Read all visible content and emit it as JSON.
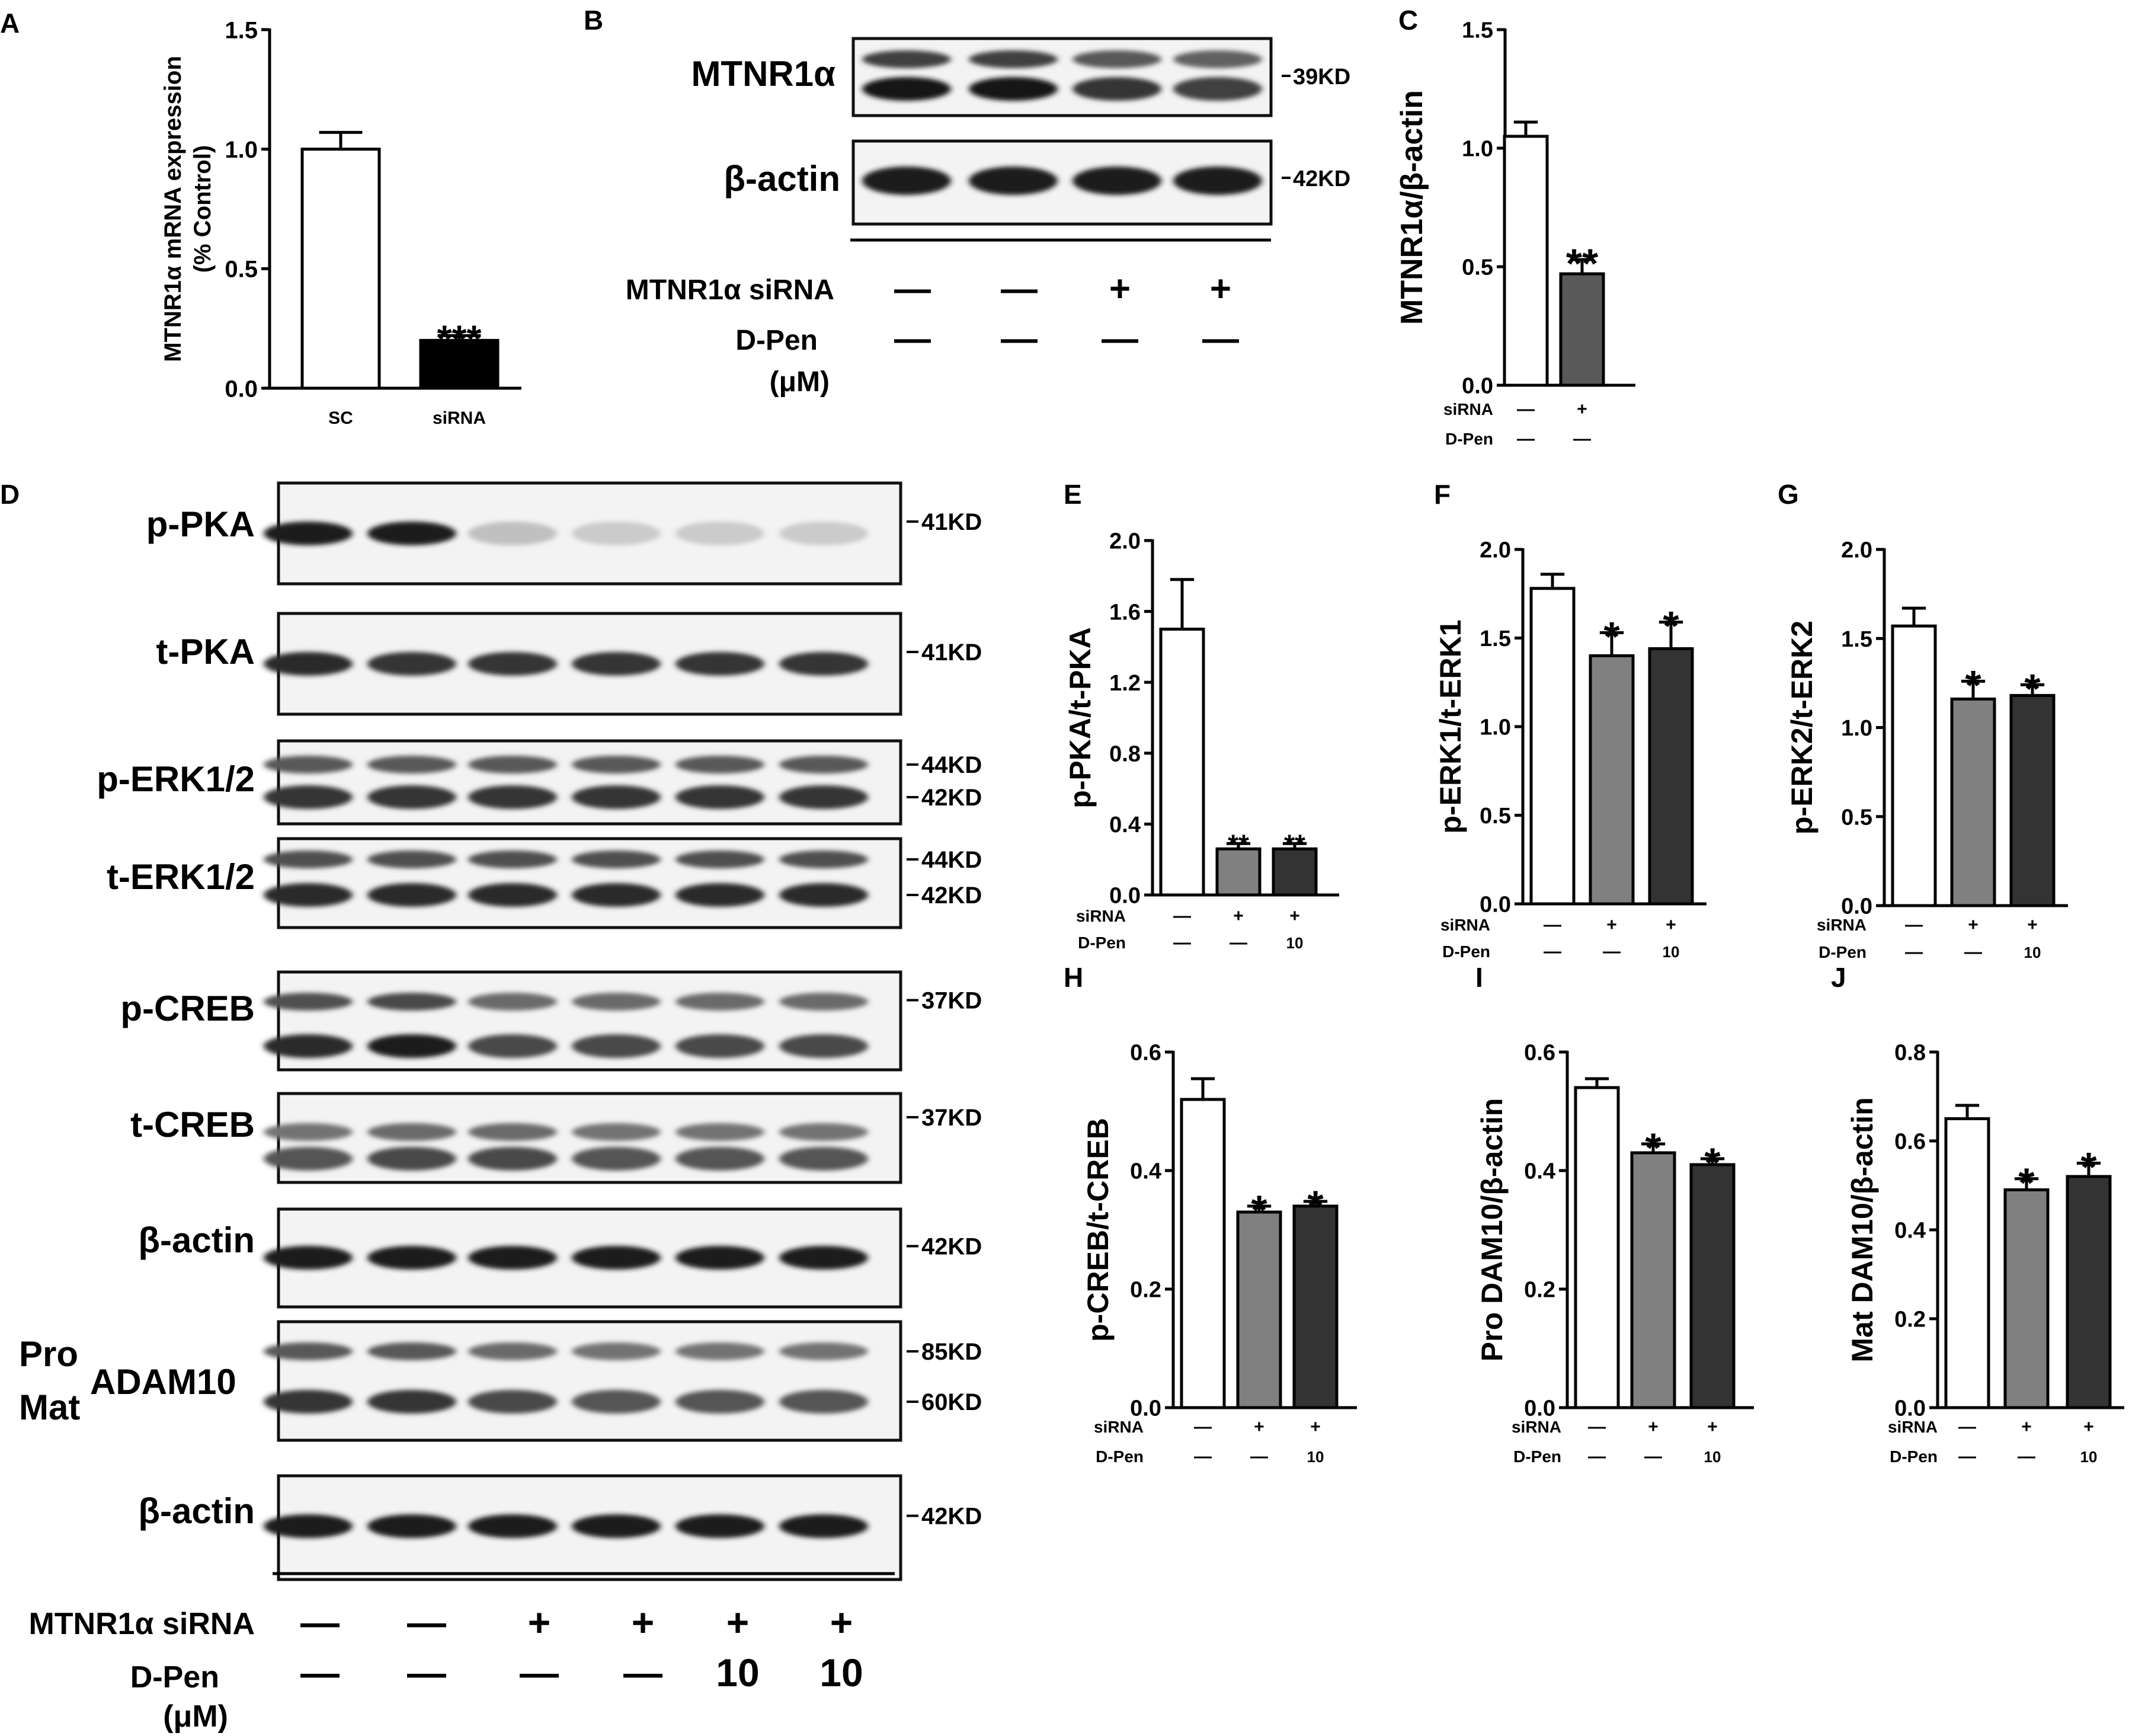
{
  "panels": {
    "A": {
      "letter": "A"
    },
    "B": {
      "letter": "B"
    },
    "C": {
      "letter": "C"
    },
    "D": {
      "letter": "D"
    },
    "E": {
      "letter": "E"
    },
    "F": {
      "letter": "F"
    },
    "G": {
      "letter": "G"
    },
    "H": {
      "letter": "H"
    },
    "I": {
      "letter": "I"
    },
    "J": {
      "letter": "J"
    }
  },
  "blotB": {
    "lanes": 4,
    "bands": [
      {
        "label": "MTNR1α",
        "marker": "39KD",
        "intensity": [
          1.0,
          1.0,
          0.85,
          0.8
        ],
        "double": true
      },
      {
        "label": "β-actin",
        "marker": "42KD",
        "intensity": [
          0.95,
          0.95,
          0.95,
          0.95
        ],
        "double": false
      }
    ],
    "treatments": [
      {
        "label": "MTNR1α siRNA",
        "values": [
          "—",
          "—",
          "+",
          "+"
        ]
      },
      {
        "label": "D-Pen",
        "unit": "(μM)",
        "values": [
          "—",
          "—",
          "—",
          "—"
        ]
      }
    ]
  },
  "blotD": {
    "lanes": 6,
    "bands": [
      {
        "label": "p-PKA",
        "markers": [
          "41KD"
        ],
        "intensity": [
          0.95,
          0.95,
          0.2,
          0.15,
          0.15,
          0.15
        ],
        "double": false
      },
      {
        "label": "t-PKA",
        "markers": [
          "41KD"
        ],
        "intensity": [
          0.9,
          0.85,
          0.85,
          0.85,
          0.85,
          0.85
        ],
        "double": false
      },
      {
        "label": "p-ERK1/2",
        "markers": [
          "44KD",
          "42KD"
        ],
        "intensity": [
          0.85,
          0.85,
          0.85,
          0.85,
          0.85,
          0.85
        ],
        "double": true
      },
      {
        "label": "t-ERK1/2",
        "markers": [
          "44KD",
          "42KD"
        ],
        "intensity": [
          0.9,
          0.9,
          0.9,
          0.9,
          0.9,
          0.9
        ],
        "double": true
      },
      {
        "label": "p-CREB",
        "markers": [
          "37KD"
        ],
        "intensity": [
          0.9,
          0.95,
          0.75,
          0.75,
          0.75,
          0.75
        ],
        "double": true
      },
      {
        "label": "t-CREB",
        "markers": [
          "37KD"
        ],
        "intensity": [
          0.7,
          0.75,
          0.75,
          0.7,
          0.7,
          0.7
        ],
        "double": true
      },
      {
        "label": "β-actin",
        "markers": [
          "42KD"
        ],
        "intensity": [
          0.95,
          0.95,
          0.95,
          0.95,
          0.95,
          0.95
        ],
        "double": false
      },
      {
        "label": "ADAM10",
        "prefix_top": "Pro",
        "prefix_bottom": "Mat",
        "markers": [
          "85KD",
          "60KD"
        ],
        "intensity": [
          0.85,
          0.85,
          0.75,
          0.7,
          0.7,
          0.7
        ],
        "double": true
      },
      {
        "label": "β-actin",
        "markers": [
          "42KD"
        ],
        "intensity": [
          0.95,
          0.95,
          0.95,
          0.95,
          0.95,
          0.95
        ],
        "double": false
      }
    ],
    "treatments": [
      {
        "label": "MTNR1α siRNA",
        "values": [
          "—",
          "—",
          "+",
          "+",
          "+",
          "+"
        ]
      },
      {
        "label": "D-Pen",
        "unit": "(μM)",
        "values": [
          "—",
          "—",
          "—",
          "—",
          "10",
          "10"
        ]
      }
    ]
  },
  "chart_data": [
    {
      "panel": "A",
      "type": "bar",
      "ylabel_line1": "MTNR1α mRNA expression",
      "ylabel_line2": "(% Control)",
      "ylim": [
        0,
        1.5
      ],
      "yticks": [
        "0.0",
        "0.5",
        "1.0",
        "1.5"
      ],
      "categories": [
        "SC",
        "siRNA"
      ],
      "values": [
        1.0,
        0.2
      ],
      "errors": [
        0.07,
        0.02
      ],
      "colors": [
        "#ffffff",
        "#000000"
      ],
      "significance": [
        "",
        "***"
      ]
    },
    {
      "panel": "C",
      "type": "bar",
      "ylabel": "MTNR1α/β-actin",
      "ylim": [
        0,
        1.5
      ],
      "yticks": [
        "0.0",
        "0.5",
        "1.0",
        "1.5"
      ],
      "values": [
        1.05,
        0.47
      ],
      "errors": [
        0.06,
        0.06
      ],
      "colors": [
        "#ffffff",
        "#595959"
      ],
      "significance": [
        "",
        "**"
      ],
      "conditions": [
        {
          "label": "siRNA",
          "values": [
            "—",
            "+"
          ]
        },
        {
          "label": "D-Pen",
          "values": [
            "—",
            "—"
          ]
        }
      ]
    },
    {
      "panel": "E",
      "type": "bar",
      "ylabel": "p-PKA/t-PKA",
      "ylim": [
        0,
        2.0
      ],
      "yticks": [
        "0.0",
        "0.4",
        "0.8",
        "1.2",
        "1.6",
        "2.0"
      ],
      "values": [
        1.5,
        0.26,
        0.26
      ],
      "errors": [
        0.28,
        0.03,
        0.03
      ],
      "colors": [
        "#ffffff",
        "#808080",
        "#333333"
      ],
      "significance": [
        "",
        "**",
        "**"
      ],
      "conditions": [
        {
          "label": "siRNA",
          "values": [
            "—",
            "+",
            "+"
          ]
        },
        {
          "label": "D-Pen",
          "values": [
            "—",
            "—",
            "10"
          ]
        }
      ]
    },
    {
      "panel": "F",
      "type": "bar",
      "ylabel": "p-ERK1/t-ERK1",
      "ylim": [
        0,
        2.0
      ],
      "yticks": [
        "0.0",
        "0.5",
        "1.0",
        "1.5",
        "2.0"
      ],
      "values": [
        1.78,
        1.4,
        1.44
      ],
      "errors": [
        0.08,
        0.13,
        0.15
      ],
      "colors": [
        "#ffffff",
        "#808080",
        "#333333"
      ],
      "significance": [
        "",
        "*",
        "*"
      ],
      "conditions": [
        {
          "label": "siRNA",
          "values": [
            "—",
            "+",
            "+"
          ]
        },
        {
          "label": "D-Pen",
          "values": [
            "—",
            "—",
            "10"
          ]
        }
      ]
    },
    {
      "panel": "G",
      "type": "bar",
      "ylabel": "p-ERK2/t-ERK2",
      "ylim": [
        0,
        2.0
      ],
      "yticks": [
        "0.0",
        "0.5",
        "1.0",
        "1.5",
        "2.0"
      ],
      "values": [
        1.57,
        1.16,
        1.18
      ],
      "errors": [
        0.1,
        0.1,
        0.06
      ],
      "colors": [
        "#ffffff",
        "#808080",
        "#333333"
      ],
      "significance": [
        "",
        "*",
        "*"
      ],
      "conditions": [
        {
          "label": "siRNA",
          "values": [
            "—",
            "+",
            "+"
          ]
        },
        {
          "label": "D-Pen",
          "values": [
            "—",
            "—",
            "10"
          ]
        }
      ]
    },
    {
      "panel": "H",
      "type": "bar",
      "ylabel": "p-CREB/t-CREB",
      "ylim": [
        0,
        0.6
      ],
      "yticks": [
        "0.0",
        "0.2",
        "0.4",
        "0.6"
      ],
      "values": [
        0.52,
        0.33,
        0.34
      ],
      "errors": [
        0.035,
        0.01,
        0.008
      ],
      "colors": [
        "#ffffff",
        "#808080",
        "#333333"
      ],
      "significance": [
        "",
        "*",
        "*"
      ],
      "conditions": [
        {
          "label": "siRNA",
          "values": [
            "—",
            "+",
            "+"
          ]
        },
        {
          "label": "D-Pen",
          "values": [
            "—",
            "—",
            "10"
          ]
        }
      ]
    },
    {
      "panel": "I",
      "type": "bar",
      "ylabel": "Pro DAM10/β-actin",
      "ylim": [
        0,
        0.6
      ],
      "yticks": [
        "0.0",
        "0.2",
        "0.4",
        "0.6"
      ],
      "values": [
        0.54,
        0.43,
        0.41
      ],
      "errors": [
        0.015,
        0.015,
        0.01
      ],
      "colors": [
        "#ffffff",
        "#808080",
        "#333333"
      ],
      "significance": [
        "",
        "*",
        "*"
      ],
      "conditions": [
        {
          "label": "siRNA",
          "values": [
            "—",
            "+",
            "+"
          ]
        },
        {
          "label": "D-Pen",
          "values": [
            "—",
            "—",
            "10"
          ]
        }
      ]
    },
    {
      "panel": "J",
      "type": "bar",
      "ylabel": "Mat DAM10/β-actin",
      "ylim": [
        0,
        0.8
      ],
      "yticks": [
        "0.0",
        "0.2",
        "0.4",
        "0.6",
        "0.8"
      ],
      "values": [
        0.65,
        0.49,
        0.52
      ],
      "errors": [
        0.03,
        0.025,
        0.03
      ],
      "colors": [
        "#ffffff",
        "#808080",
        "#333333"
      ],
      "significance": [
        "",
        "*",
        "*"
      ],
      "conditions": [
        {
          "label": "siRNA",
          "values": [
            "—",
            "+",
            "+"
          ]
        },
        {
          "label": "D-Pen",
          "values": [
            "—",
            "—",
            "10"
          ]
        }
      ]
    }
  ]
}
